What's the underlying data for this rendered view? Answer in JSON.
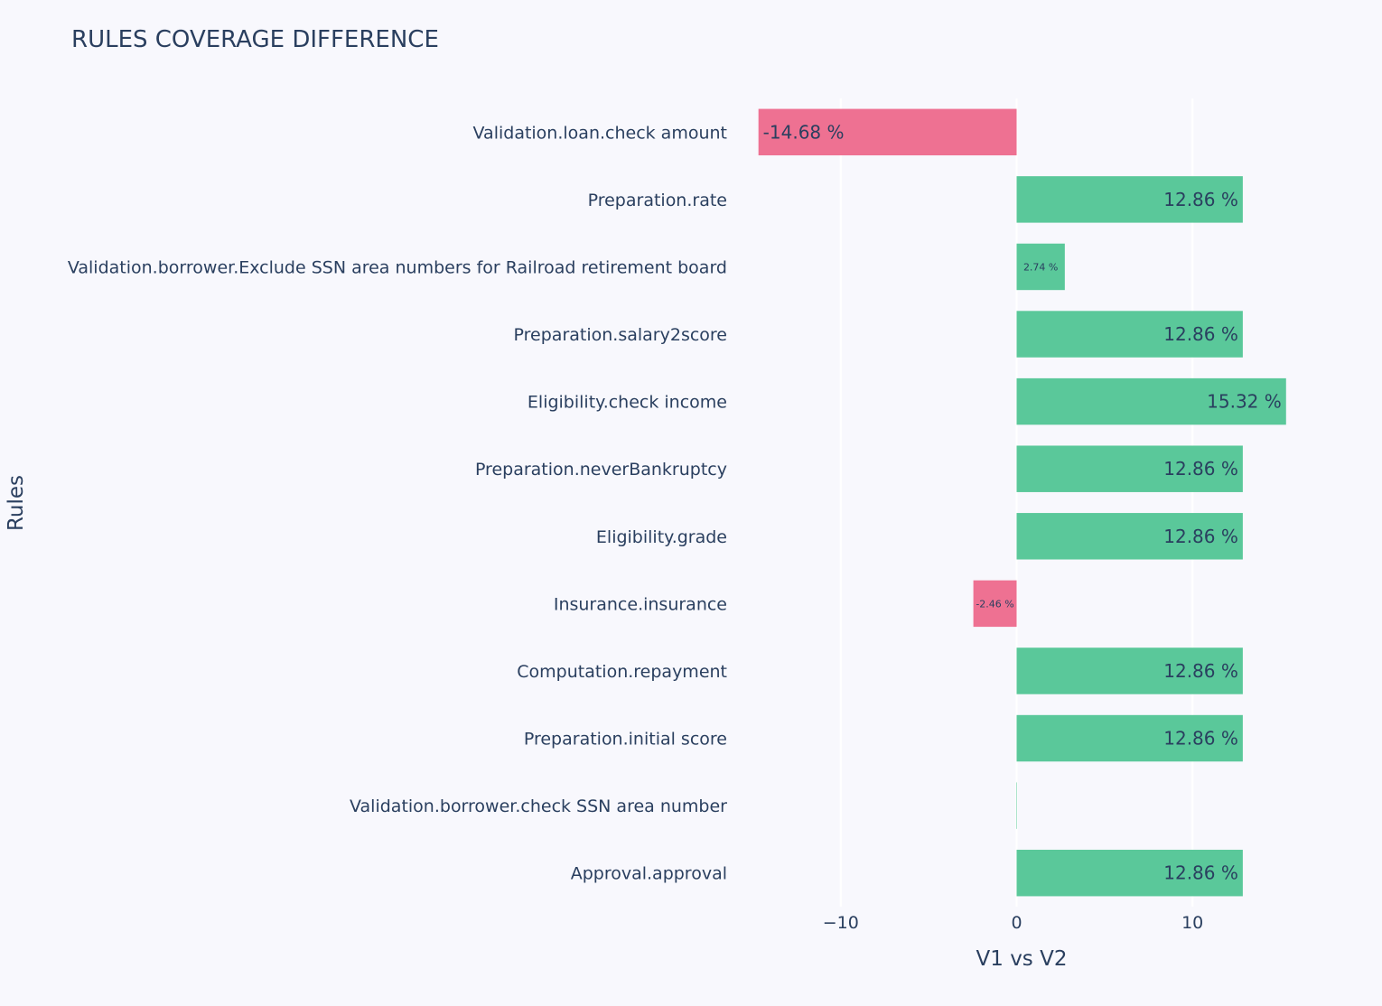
{
  "chart_data": {
    "type": "bar",
    "orientation": "horizontal",
    "title": "RULES COVERAGE DIFFERENCE",
    "xlabel": "V1 vs V2",
    "ylabel": "Rules",
    "xlim": [
      -16.0,
      15.5
    ],
    "xticks": [
      -10,
      0,
      10
    ],
    "xtick_labels": [
      "−10",
      "0",
      "10"
    ],
    "grid": "vertical",
    "colors": {
      "positive": "#5ac89a",
      "negative": "#ee7192"
    },
    "categories": [
      "Validation.loan.check amount",
      "Preparation.rate",
      "Validation.borrower.Exclude SSN area numbers for Railroad retirement board",
      "Preparation.salary2score",
      "Eligibility.check income",
      "Preparation.neverBankruptcy",
      "Eligibility.grade",
      "Insurance.insurance",
      "Computation.repayment",
      "Preparation.initial score",
      "Validation.borrower.check SSN area number",
      "Approval.approval"
    ],
    "values": [
      -14.68,
      12.86,
      2.74,
      12.86,
      15.32,
      12.86,
      12.86,
      -2.46,
      12.86,
      12.86,
      0,
      12.86
    ],
    "data_labels": [
      "-14.68 %",
      "12.86 %",
      "2.74 %",
      "12.86 %",
      "15.32 %",
      "12.86 %",
      "12.86 %",
      "-2.46 %",
      "12.86 %",
      "12.86 %",
      "",
      "12.86 %"
    ]
  }
}
